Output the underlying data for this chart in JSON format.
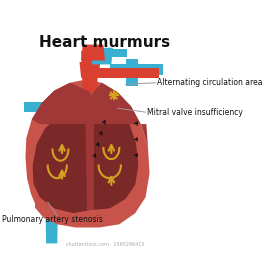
{
  "title": "Heart murmurs",
  "title_fontsize": 11,
  "label_alternating": "Alternating circulation area",
  "label_mitral": "Mitral valve insufficiency",
  "label_pulmonary": "Pulmonary artery stenosis",
  "watermark": "shutterstock.com · 2565296415",
  "bg_color": "#ffffff",
  "heart_body_color": "#c8534a",
  "heart_inner_color": "#7a2828",
  "heart_mid_color": "#a03838",
  "aorta_color": "#d94030",
  "blue_vessel_color": "#3ab0d0",
  "valve_color": "#d4a020",
  "arrow_color": "#111111",
  "label_color": "#111111",
  "line_color": "#999999"
}
